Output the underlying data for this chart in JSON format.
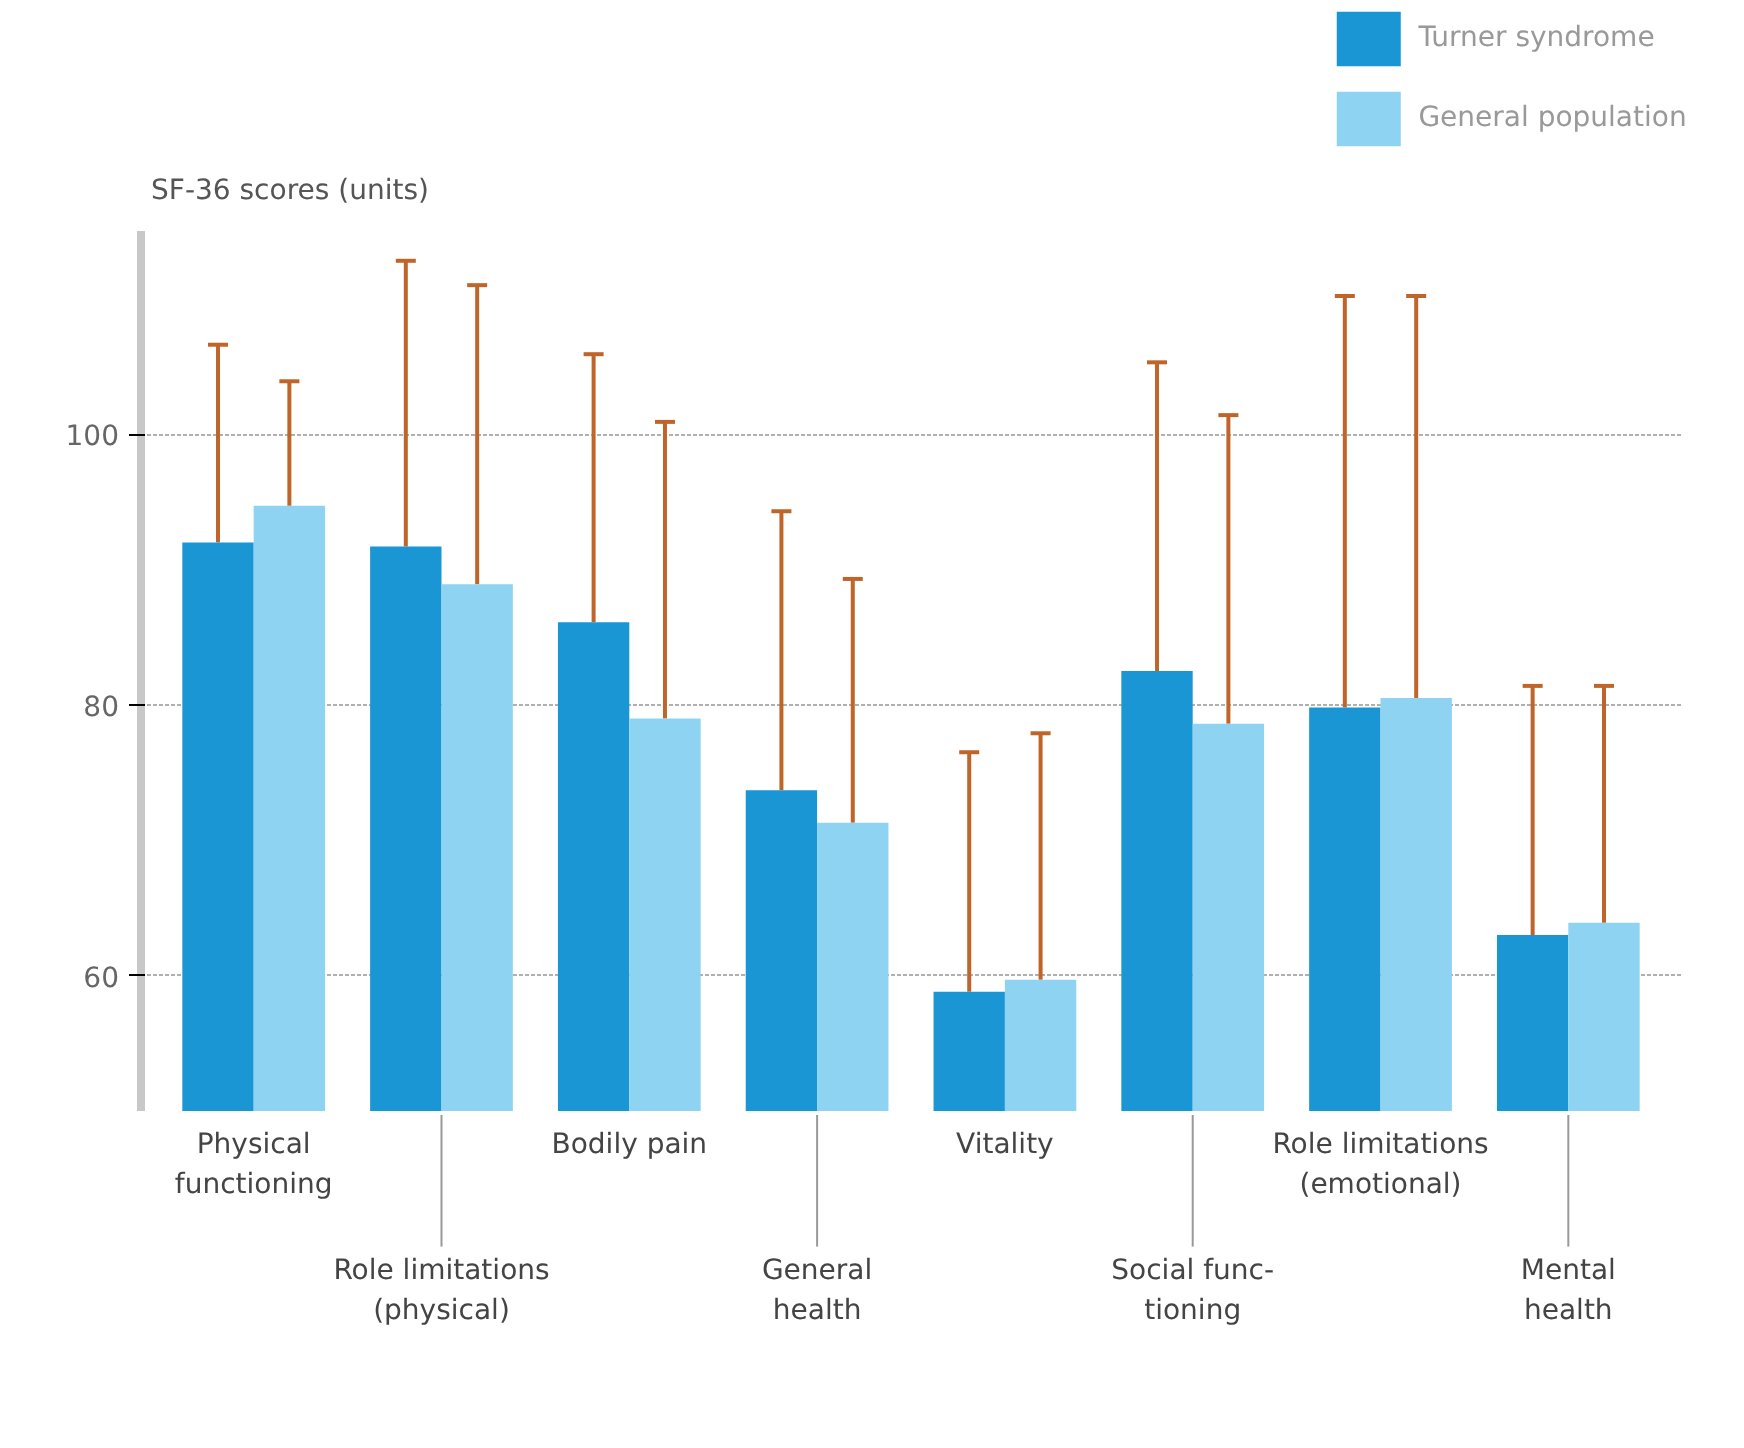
{
  "chart_data": {
    "type": "bar",
    "ylabel": "SF-36 scores (units)",
    "categories": [
      "Physical\nfunctioning",
      "Role limitations\n(physical)",
      "Bodily pain",
      "General\nhealth",
      "Vitality",
      "Social func-\ntioning",
      "Role limitations\n(emotional)",
      "Mental\nhealth"
    ],
    "series": [
      {
        "name": "Turner syndrome",
        "color": "#1a96d4",
        "values": [
          92.0,
          91.7,
          86.1,
          73.7,
          58.8,
          82.5,
          79.8,
          63.0
        ],
        "errors": [
          [
            92.0,
            106.6
          ],
          [
            91.7,
            112.8
          ],
          [
            86.1,
            105.9
          ],
          [
            73.7,
            94.3
          ],
          [
            58.8,
            76.5
          ],
          [
            82.5,
            105.3
          ],
          [
            79.8,
            110.2
          ],
          [
            63.0,
            81.4
          ]
        ]
      },
      {
        "name": "General population",
        "color": "#8fd3f2",
        "values": [
          94.7,
          88.9,
          79.0,
          71.3,
          59.7,
          78.6,
          80.5,
          63.9
        ],
        "errors": [
          [
            94.7,
            103.9
          ],
          [
            88.9,
            111.0
          ],
          [
            79.0,
            100.9
          ],
          [
            71.3,
            89.3
          ],
          [
            59.7,
            77.9
          ],
          [
            78.6,
            101.4
          ],
          [
            80.5,
            110.2
          ],
          [
            63.9,
            81.4
          ]
        ]
      }
    ],
    "ylim": [
      50,
      115
    ],
    "yticks": [
      60,
      80,
      100
    ],
    "grid": "y",
    "legend": "top right"
  }
}
